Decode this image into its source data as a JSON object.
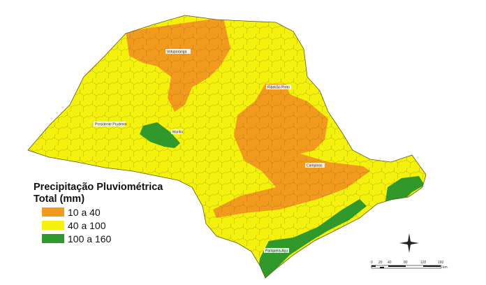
{
  "legend": {
    "title_line1": "Precipitação Pluviométrica",
    "title_line2": "Total (mm)",
    "items": [
      {
        "label": "10 a 40",
        "color": "#f29a1e"
      },
      {
        "label": "40 a 100",
        "color": "#f4f20c"
      },
      {
        "label": "100 a 160",
        "color": "#2f9a2c"
      }
    ]
  },
  "cities": [
    "Votuporanga",
    "Ribeirão Preto",
    "Presidente Prudente",
    "Marília",
    "Campinas",
    "Pariquera-Açu"
  ],
  "scale_bar": {
    "ticks": [
      "0",
      "20",
      "40",
      "80",
      "120",
      "160"
    ],
    "unit": "km"
  },
  "north_arrow_icon": "compass-rose-icon"
}
